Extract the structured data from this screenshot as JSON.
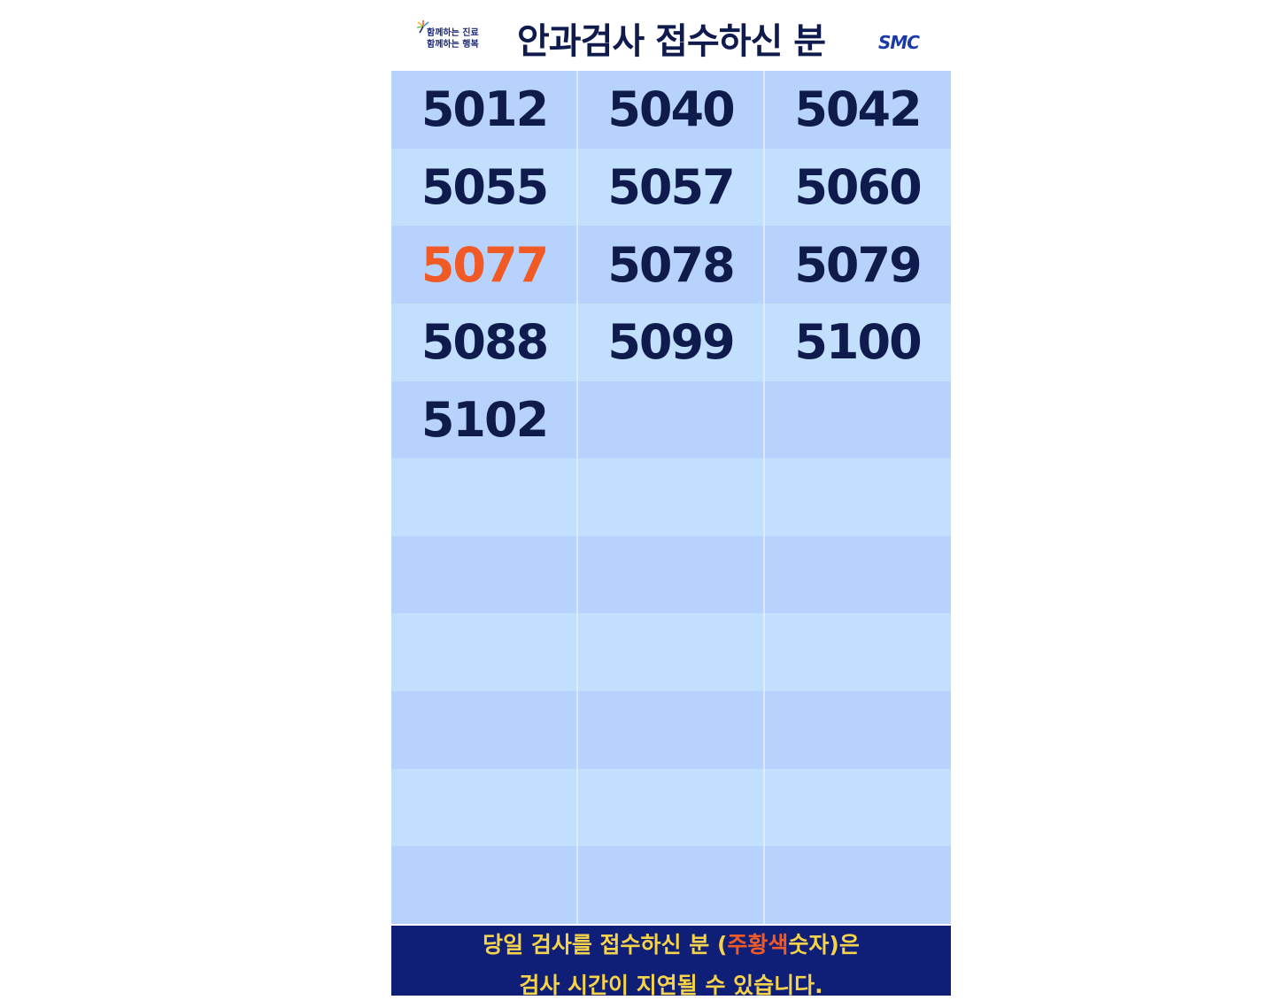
{
  "header": {
    "slogan_line1": "함께하는 진료",
    "slogan_line2": "함께하는 행복",
    "title": "안과검사 접수하신 분",
    "brand": "SMC"
  },
  "grid": {
    "rows": [
      [
        "5012",
        "5040",
        "5042"
      ],
      [
        "5055",
        "5057",
        "5060"
      ],
      [
        "5077",
        "5078",
        "5079"
      ],
      [
        "5088",
        "5099",
        "5100"
      ],
      [
        "5102",
        "",
        ""
      ],
      [
        "",
        "",
        ""
      ],
      [
        "",
        "",
        ""
      ],
      [
        "",
        "",
        ""
      ],
      [
        "",
        "",
        ""
      ],
      [
        "",
        "",
        ""
      ],
      [
        "",
        "",
        ""
      ]
    ],
    "highlighted": [
      "5077"
    ]
  },
  "footer": {
    "line1_a": "당일 검사를 접수하신 분 (",
    "line1_orange": "주황색",
    "line1_b": "숫자)은",
    "line2": "검사 시간이 지연될 수 있습니다."
  },
  "colors": {
    "number": "#0f1a4d",
    "highlight": "#f15a24",
    "row_odd": "#b7d3fd",
    "row_even": "#c2dffe",
    "footer_bg": "#0f1f78",
    "footer_text": "#f7d34a"
  }
}
